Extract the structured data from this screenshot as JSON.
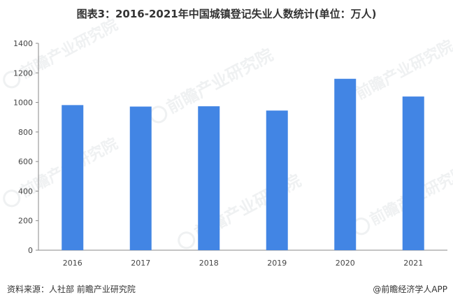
{
  "chart_data": {
    "type": "bar",
    "title": "图表3：2016-2021年中国城镇登记失业人数统计(单位：万人)",
    "categories": [
      "2016",
      "2017",
      "2018",
      "2019",
      "2020",
      "2021"
    ],
    "series": [
      {
        "values": [
          982,
          972,
          974,
          945,
          1160,
          1040
        ]
      }
    ],
    "xlabel": "",
    "ylabel": "",
    "ylim": [
      0,
      1400
    ],
    "yticks": [
      0,
      200,
      400,
      600,
      800,
      1000,
      1200,
      1400
    ],
    "grid": false,
    "legend": "none",
    "bar_color": "#4285e4"
  },
  "footer": {
    "source": "资料来源：人社部 前瞻产业研究院",
    "brand": "@前瞻经济学人APP"
  },
  "watermark": {
    "text": "前瞻产业研究院"
  }
}
